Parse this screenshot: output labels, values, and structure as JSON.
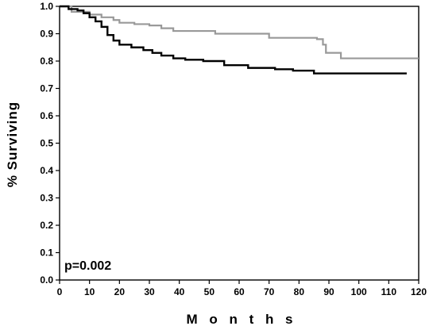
{
  "chart_data": {
    "type": "line",
    "title": "",
    "xlabel": "M o n t h s",
    "ylabel": "% Surviving",
    "xlim": [
      0,
      120
    ],
    "ylim": [
      0.0,
      1.0
    ],
    "x_ticks": [
      "0",
      "10",
      "20",
      "30",
      "40",
      "50",
      "60",
      "70",
      "80",
      "90",
      "100",
      "110",
      "120"
    ],
    "y_ticks": [
      "0.0",
      "0.1",
      "0.2",
      "0.3",
      "0.4",
      "0.5",
      "0.6",
      "0.7",
      "0.8",
      "0.9",
      "1.0"
    ],
    "grid": false,
    "legend": "none",
    "annotation": "p=0.002",
    "series": [
      {
        "color": "#999999",
        "points": [
          [
            0,
            1.0
          ],
          [
            4,
            0.98
          ],
          [
            8,
            0.98
          ],
          [
            10,
            0.97
          ],
          [
            14,
            0.96
          ],
          [
            18,
            0.95
          ],
          [
            20,
            0.94
          ],
          [
            25,
            0.935
          ],
          [
            30,
            0.93
          ],
          [
            34,
            0.92
          ],
          [
            38,
            0.91
          ],
          [
            52,
            0.9
          ],
          [
            70,
            0.885
          ],
          [
            86,
            0.88
          ],
          [
            88,
            0.86
          ],
          [
            89,
            0.83
          ],
          [
            94,
            0.81
          ],
          [
            120,
            0.81
          ]
        ]
      },
      {
        "color": "#000000",
        "points": [
          [
            0,
            1.0
          ],
          [
            3,
            0.99
          ],
          [
            6,
            0.985
          ],
          [
            8,
            0.975
          ],
          [
            10,
            0.96
          ],
          [
            12,
            0.945
          ],
          [
            14,
            0.925
          ],
          [
            16,
            0.895
          ],
          [
            18,
            0.875
          ],
          [
            20,
            0.86
          ],
          [
            24,
            0.85
          ],
          [
            28,
            0.84
          ],
          [
            31,
            0.83
          ],
          [
            34,
            0.82
          ],
          [
            38,
            0.81
          ],
          [
            42,
            0.805
          ],
          [
            48,
            0.8
          ],
          [
            55,
            0.785
          ],
          [
            63,
            0.775
          ],
          [
            72,
            0.77
          ],
          [
            78,
            0.765
          ],
          [
            85,
            0.755
          ],
          [
            116,
            0.755
          ]
        ]
      }
    ]
  }
}
